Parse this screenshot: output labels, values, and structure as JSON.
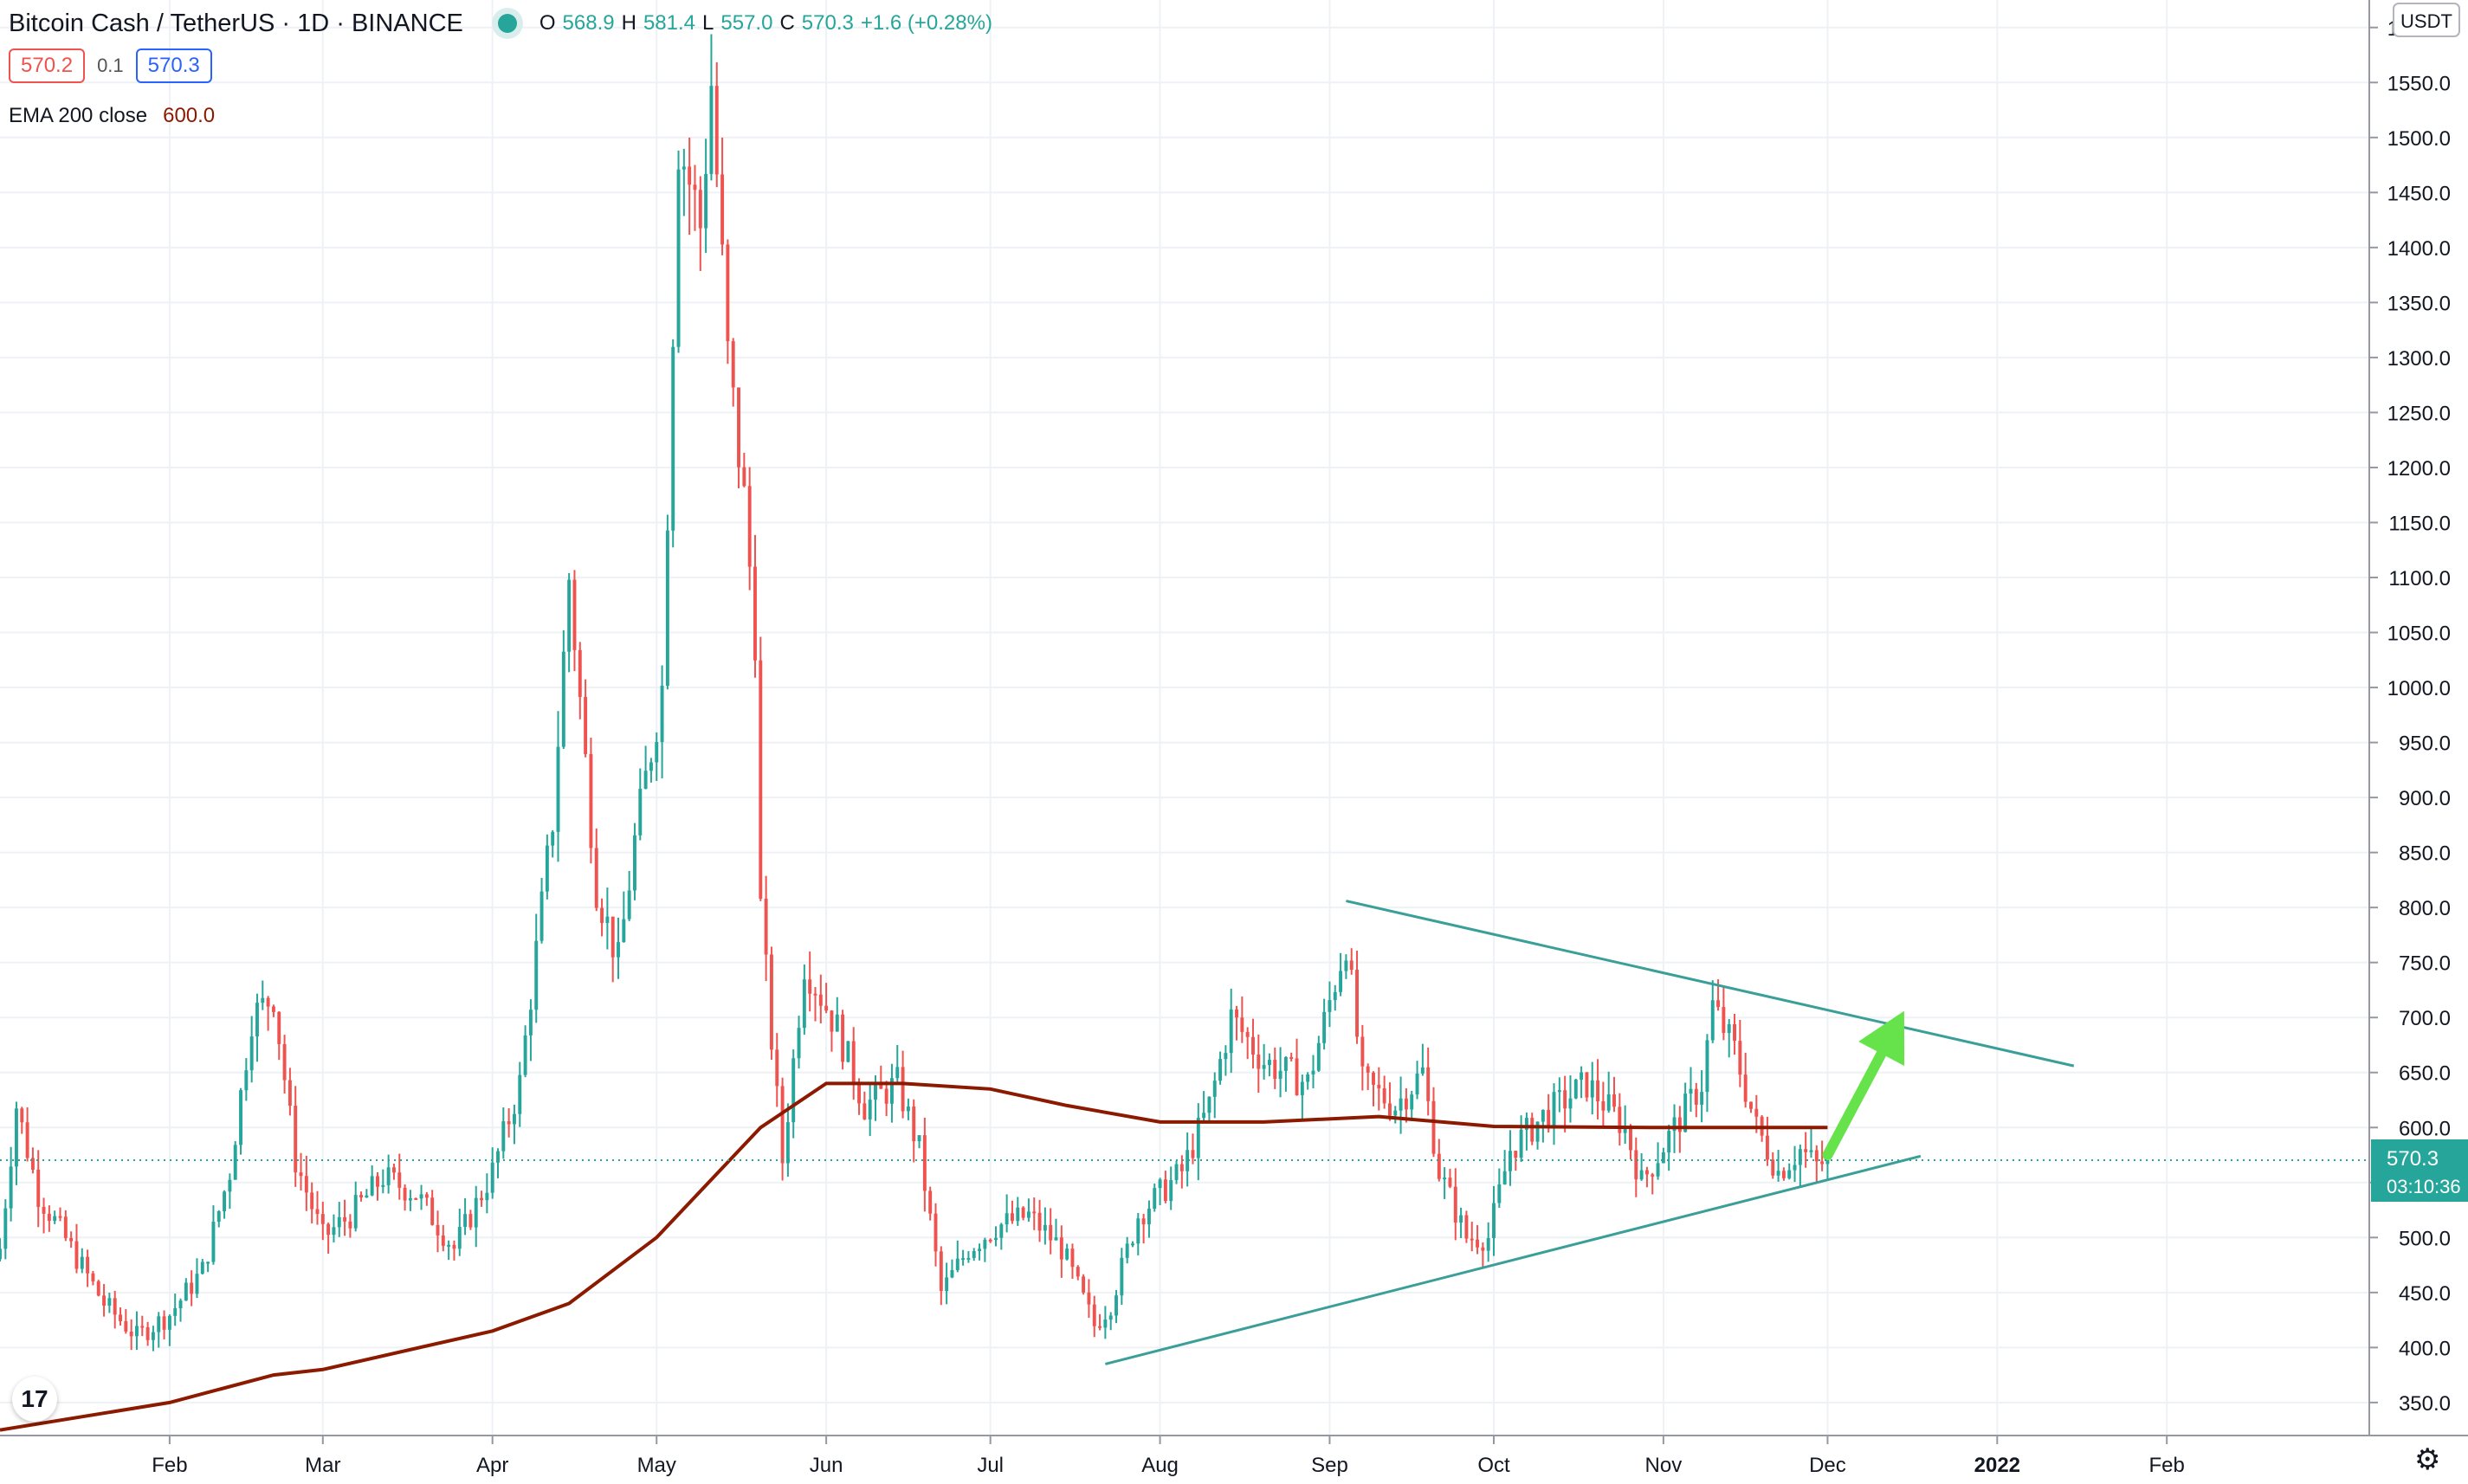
{
  "header": {
    "title": "Bitcoin Cash / TetherUS · 1D · BINANCE",
    "o_label": "O",
    "o_value": "568.9",
    "h_label": "H",
    "h_value": "581.4",
    "l_label": "L",
    "l_value": "557.0",
    "c_label": "C",
    "c_value": "570.3",
    "change": "+1.6 (+0.28%)"
  },
  "quote": {
    "bid": "570.2",
    "spread": "0.1",
    "ask": "570.3"
  },
  "indicator": {
    "name": "EMA 200 close",
    "value": "600.0"
  },
  "axis_currency": "USDT",
  "last_price_label": "570.3",
  "countdown": "03:10:36",
  "logo_text": "17",
  "colors": {
    "up": "#26a69a",
    "down": "#ef5350",
    "ema": "#8b1a00",
    "trendline": "#3a9e99",
    "arrow": "#66e34a",
    "grid": "#eef1f5",
    "axis": "#131722"
  },
  "chart_data": {
    "type": "candlestick",
    "symbol": "Bitcoin Cash / TetherUS",
    "interval": "1D",
    "exchange": "BINANCE",
    "y_axis": {
      "side": "right",
      "unit": "USDT",
      "ticks": [
        "350.0",
        "400.0",
        "450.0",
        "500.0",
        "550.0",
        "600.0",
        "650.0",
        "700.0",
        "750.0",
        "800.0",
        "850.0",
        "900.0",
        "950.0",
        "1000.0",
        "1050.0",
        "1100.0",
        "1150.0",
        "1200.0",
        "1250.0",
        "1300.0",
        "1350.0",
        "1400.0",
        "1450.0",
        "1500.0",
        "1550.0",
        "1600.0"
      ],
      "range": [
        320,
        1625
      ]
    },
    "x_axis": {
      "ticks": [
        "Feb",
        "Mar",
        "Apr",
        "May",
        "Jun",
        "Jul",
        "Aug",
        "Sep",
        "Oct",
        "Nov",
        "Dec",
        "2022",
        "Feb"
      ],
      "range": [
        "2021-01-01",
        "2022-03-10"
      ]
    },
    "grid": true,
    "ohlc_anchors": [
      {
        "date": "2021-01-01",
        "close": 490
      },
      {
        "date": "2021-01-04",
        "close": 620
      },
      {
        "date": "2021-01-08",
        "close": 540
      },
      {
        "date": "2021-01-14",
        "close": 490
      },
      {
        "date": "2021-01-20",
        "close": 440
      },
      {
        "date": "2021-01-26",
        "close": 410
      },
      {
        "date": "2021-02-01",
        "close": 430
      },
      {
        "date": "2021-02-07",
        "close": 470
      },
      {
        "date": "2021-02-12",
        "close": 560
      },
      {
        "date": "2021-02-16",
        "close": 700
      },
      {
        "date": "2021-02-20",
        "close": 720
      },
      {
        "date": "2021-02-24",
        "close": 570
      },
      {
        "date": "2021-03-01",
        "close": 500
      },
      {
        "date": "2021-03-06",
        "close": 520
      },
      {
        "date": "2021-03-12",
        "close": 555
      },
      {
        "date": "2021-03-18",
        "close": 540
      },
      {
        "date": "2021-03-25",
        "close": 490
      },
      {
        "date": "2021-04-01",
        "close": 560
      },
      {
        "date": "2021-04-06",
        "close": 640
      },
      {
        "date": "2021-04-12",
        "close": 880
      },
      {
        "date": "2021-04-15",
        "close": 1100
      },
      {
        "date": "2021-04-20",
        "close": 820
      },
      {
        "date": "2021-04-24",
        "close": 750
      },
      {
        "date": "2021-04-27",
        "close": 860
      },
      {
        "date": "2021-05-02",
        "close": 1000
      },
      {
        "date": "2021-05-05",
        "close": 1500
      },
      {
        "date": "2021-05-09",
        "close": 1420
      },
      {
        "date": "2021-05-11",
        "close": 1550
      },
      {
        "date": "2021-05-14",
        "close": 1300
      },
      {
        "date": "2021-05-17",
        "close": 1170
      },
      {
        "date": "2021-05-19",
        "close": 1050
      },
      {
        "date": "2021-05-20",
        "close": 800
      },
      {
        "date": "2021-05-22",
        "close": 680
      },
      {
        "date": "2021-05-24",
        "close": 570
      },
      {
        "date": "2021-05-28",
        "close": 750
      },
      {
        "date": "2021-06-03",
        "close": 690
      },
      {
        "date": "2021-06-08",
        "close": 620
      },
      {
        "date": "2021-06-14",
        "close": 640
      },
      {
        "date": "2021-06-18",
        "close": 580
      },
      {
        "date": "2021-06-22",
        "close": 450
      },
      {
        "date": "2021-06-27",
        "close": 490
      },
      {
        "date": "2021-07-02",
        "close": 510
      },
      {
        "date": "2021-07-08",
        "close": 520
      },
      {
        "date": "2021-07-14",
        "close": 490
      },
      {
        "date": "2021-07-20",
        "close": 420
      },
      {
        "date": "2021-07-23",
        "close": 440
      },
      {
        "date": "2021-07-28",
        "close": 520
      },
      {
        "date": "2021-08-05",
        "close": 560
      },
      {
        "date": "2021-08-10",
        "close": 620
      },
      {
        "date": "2021-08-14",
        "close": 700
      },
      {
        "date": "2021-08-20",
        "close": 660
      },
      {
        "date": "2021-08-28",
        "close": 640
      },
      {
        "date": "2021-09-04",
        "close": 770
      },
      {
        "date": "2021-09-07",
        "close": 640
      },
      {
        "date": "2021-09-13",
        "close": 620
      },
      {
        "date": "2021-09-18",
        "close": 650
      },
      {
        "date": "2021-09-21",
        "close": 560
      },
      {
        "date": "2021-09-26",
        "close": 500
      },
      {
        "date": "2021-09-30",
        "close": 500
      },
      {
        "date": "2021-10-04",
        "close": 580
      },
      {
        "date": "2021-10-10",
        "close": 610
      },
      {
        "date": "2021-10-18",
        "close": 640
      },
      {
        "date": "2021-10-25",
        "close": 600
      },
      {
        "date": "2021-10-28",
        "close": 550
      },
      {
        "date": "2021-11-03",
        "close": 600
      },
      {
        "date": "2021-11-08",
        "close": 640
      },
      {
        "date": "2021-11-10",
        "close": 710
      },
      {
        "date": "2021-11-14",
        "close": 670
      },
      {
        "date": "2021-11-18",
        "close": 600
      },
      {
        "date": "2021-11-22",
        "close": 560
      },
      {
        "date": "2021-11-26",
        "close": 580
      },
      {
        "date": "2021-11-29",
        "close": 565
      },
      {
        "date": "2021-12-01",
        "close": 570.3
      }
    ],
    "ema": {
      "name": "EMA 200 close",
      "points": [
        {
          "date": "2021-01-01",
          "value": 325
        },
        {
          "date": "2021-02-01",
          "value": 350
        },
        {
          "date": "2021-02-20",
          "value": 375
        },
        {
          "date": "2021-03-01",
          "value": 380
        },
        {
          "date": "2021-04-01",
          "value": 415
        },
        {
          "date": "2021-04-15",
          "value": 440
        },
        {
          "date": "2021-05-01",
          "value": 500
        },
        {
          "date": "2021-05-20",
          "value": 600
        },
        {
          "date": "2021-06-01",
          "value": 640
        },
        {
          "date": "2021-06-15",
          "value": 640
        },
        {
          "date": "2021-07-01",
          "value": 635
        },
        {
          "date": "2021-07-15",
          "value": 620
        },
        {
          "date": "2021-08-01",
          "value": 605
        },
        {
          "date": "2021-08-20",
          "value": 605
        },
        {
          "date": "2021-09-10",
          "value": 610
        },
        {
          "date": "2021-10-01",
          "value": 601
        },
        {
          "date": "2021-11-01",
          "value": 600
        },
        {
          "date": "2021-12-01",
          "value": 600
        }
      ]
    },
    "trendlines": [
      {
        "name": "upper",
        "from": {
          "date": "2021-09-04",
          "value": 806
        },
        "to": {
          "date": "2022-01-15",
          "value": 656
        }
      },
      {
        "name": "lower",
        "from": {
          "date": "2021-07-22",
          "value": 385
        },
        "to": {
          "date": "2021-12-18",
          "value": 574
        }
      }
    ],
    "arrow": {
      "from": {
        "date": "2021-12-01",
        "value": 575
      },
      "to": {
        "date": "2021-12-15",
        "value": 706
      }
    },
    "last_price": 570.3
  }
}
